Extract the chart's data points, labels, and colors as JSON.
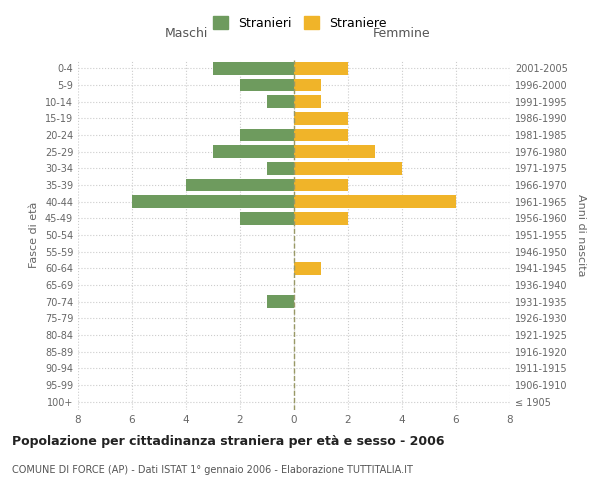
{
  "age_groups": [
    "100+",
    "95-99",
    "90-94",
    "85-89",
    "80-84",
    "75-79",
    "70-74",
    "65-69",
    "60-64",
    "55-59",
    "50-54",
    "45-49",
    "40-44",
    "35-39",
    "30-34",
    "25-29",
    "20-24",
    "15-19",
    "10-14",
    "5-9",
    "0-4"
  ],
  "birth_years": [
    "≤ 1905",
    "1906-1910",
    "1911-1915",
    "1916-1920",
    "1921-1925",
    "1926-1930",
    "1931-1935",
    "1936-1940",
    "1941-1945",
    "1946-1950",
    "1951-1955",
    "1956-1960",
    "1961-1965",
    "1966-1970",
    "1971-1975",
    "1976-1980",
    "1981-1985",
    "1986-1990",
    "1991-1995",
    "1996-2000",
    "2001-2005"
  ],
  "males": [
    0,
    0,
    0,
    0,
    0,
    0,
    1,
    0,
    0,
    0,
    0,
    2,
    6,
    4,
    1,
    3,
    2,
    0,
    1,
    2,
    3
  ],
  "females": [
    0,
    0,
    0,
    0,
    0,
    0,
    0,
    0,
    1,
    0,
    0,
    2,
    6,
    2,
    4,
    3,
    2,
    2,
    1,
    1,
    2
  ],
  "male_color": "#6e9b5e",
  "female_color": "#f0b429",
  "bar_height": 0.75,
  "xlim": 8,
  "title": "Popolazione per cittadinanza straniera per età e sesso - 2006",
  "subtitle": "COMUNE DI FORCE (AP) - Dati ISTAT 1° gennaio 2006 - Elaborazione TUTTITALIA.IT",
  "ylabel_left": "Fasce di età",
  "ylabel_right": "Anni di nascita",
  "xlabel_left": "Maschi",
  "xlabel_right": "Femmine",
  "legend_male": "Stranieri",
  "legend_female": "Straniere",
  "bg_color": "#ffffff",
  "grid_color": "#cccccc",
  "tick_color": "#666666"
}
